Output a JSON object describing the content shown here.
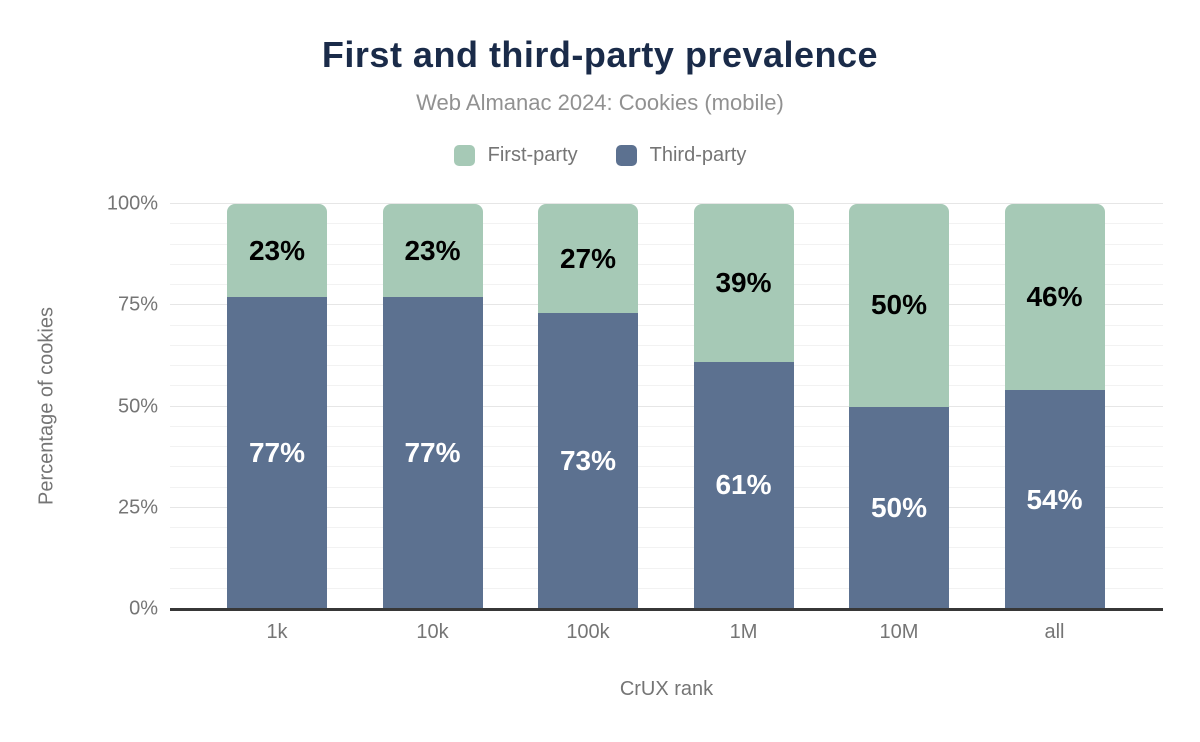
{
  "header": {
    "title": "First and third-party prevalence",
    "subtitle": "Web Almanac 2024: Cookies (mobile)"
  },
  "legend": {
    "items": [
      {
        "label": "First-party",
        "color": "#a6c9b6"
      },
      {
        "label": "Third-party",
        "color": "#5c7190"
      }
    ]
  },
  "axes": {
    "x_title": "CrUX rank",
    "y_title": "Percentage of cookies"
  },
  "colors": {
    "title": "#1a2b49",
    "subtitle_text": "#919191",
    "axis_text": "#757575",
    "first_party": "#a6c9b6",
    "third_party": "#5c7190",
    "baseline": "#373737",
    "gridline_minor": "#f2f2f2",
    "gridline_major": "#e6e6e6"
  },
  "chart_data": {
    "type": "bar",
    "stacked": true,
    "title": "First and third-party prevalence",
    "subtitle": "Web Almanac 2024: Cookies (mobile)",
    "xlabel": "CrUX rank",
    "ylabel": "Percentage of cookies",
    "categories": [
      "1k",
      "10k",
      "100k",
      "1M",
      "10M",
      "all"
    ],
    "series": [
      {
        "name": "First-party",
        "color": "#a6c9b6",
        "label_color": "#000000",
        "position": "top",
        "values": [
          23,
          23,
          27,
          39,
          50,
          46
        ]
      },
      {
        "name": "Third-party",
        "color": "#5c7190",
        "label_color": "#ffffff",
        "position": "bottom",
        "values": [
          77,
          77,
          73,
          61,
          50,
          54
        ]
      }
    ],
    "value_suffix": "%",
    "ylim": [
      0,
      100
    ],
    "yticks": [
      {
        "label": "0%",
        "value": 0
      },
      {
        "label": "25%",
        "value": 25
      },
      {
        "label": "50%",
        "value": 50
      },
      {
        "label": "75%",
        "value": 75
      },
      {
        "label": "100%",
        "value": 100
      }
    ],
    "grid": {
      "minor_step": 5,
      "major_step": 25
    },
    "legend_position": "top"
  }
}
